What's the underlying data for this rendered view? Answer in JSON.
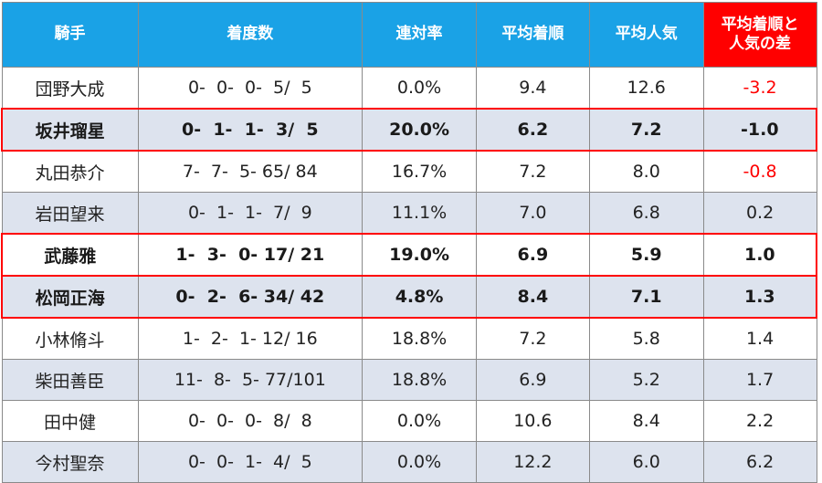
{
  "headers": [
    "騎手",
    "着度数",
    "連対率",
    "平均着順",
    "平均人気",
    "平均着順と人気の差"
  ],
  "rows": [
    {
      "jockey": "団野大成",
      "record": "0-  0-  0-  5/  5",
      "rentai": "0.0%",
      "avg_finish": "9.4",
      "avg_pop": "12.6",
      "diff": "-3.2",
      "highlight": false,
      "negative": true
    },
    {
      "jockey": "坂井瑠星",
      "record": "0-  1-  1-  3/  5",
      "rentai": "20.0%",
      "avg_finish": "6.2",
      "avg_pop": "7.2",
      "diff": "-1.0",
      "highlight": true,
      "negative": true
    },
    {
      "jockey": "丸田恭介",
      "record": "7-  7-  5- 65/ 84",
      "rentai": "16.7%",
      "avg_finish": "7.2",
      "avg_pop": "8.0",
      "diff": "-0.8",
      "highlight": false,
      "negative": true
    },
    {
      "jockey": "岩田望来",
      "record": "0-  1-  1-  7/  9",
      "rentai": "11.1%",
      "avg_finish": "7.0",
      "avg_pop": "6.8",
      "diff": "0.2",
      "highlight": false,
      "negative": false
    },
    {
      "jockey": "武藤雅",
      "record": "1-  3-  0- 17/ 21",
      "rentai": "19.0%",
      "avg_finish": "6.9",
      "avg_pop": "5.9",
      "diff": "1.0",
      "highlight": true,
      "negative": false
    },
    {
      "jockey": "松岡正海",
      "record": "0-  2-  6- 34/ 42",
      "rentai": "4.8%",
      "avg_finish": "8.4",
      "avg_pop": "7.1",
      "diff": "1.3",
      "highlight": true,
      "negative": false
    },
    {
      "jockey": "小林脩斗",
      "record": "1-  2-  1- 12/ 16",
      "rentai": "18.8%",
      "avg_finish": "7.2",
      "avg_pop": "5.8",
      "diff": "1.4",
      "highlight": false,
      "negative": false
    },
    {
      "jockey": "柴田善臣",
      "record": "11-  8-  5- 77/101",
      "rentai": "18.8%",
      "avg_finish": "6.9",
      "avg_pop": "5.2",
      "diff": "1.7",
      "highlight": false,
      "negative": false
    },
    {
      "jockey": "田中健",
      "record": "0-  0-  0-  8/  8",
      "rentai": "0.0%",
      "avg_finish": "10.6",
      "avg_pop": "8.4",
      "diff": "2.2",
      "highlight": false,
      "negative": false
    },
    {
      "jockey": "今村聖奈",
      "record": "0-  0-  1-  4/  5",
      "rentai": "0.0%",
      "avg_finish": "12.2",
      "avg_pop": "6.0",
      "diff": "6.2",
      "highlight": false,
      "negative": false
    }
  ],
  "colors": {
    "header": "#1aa2e6",
    "diff_header": "#ff0000",
    "alt_row": "#dde3ee",
    "highlight_border": "#ff0000",
    "negative_text": "#ff0000"
  }
}
